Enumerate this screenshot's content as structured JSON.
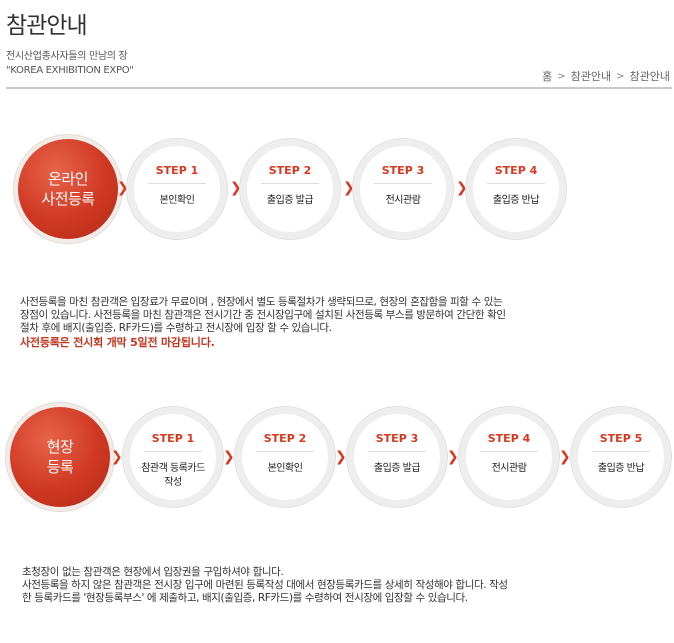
{
  "header": {
    "title": "참관안내",
    "subtitle_line1": "전시산업종사자들의 만남의 장",
    "subtitle_line2": "\"KOREA EXHIBITION EXPO\""
  },
  "breadcrumb": [
    "홈",
    "참관안내",
    "참관안내"
  ],
  "online": {
    "title_line1": "온라인",
    "title_line2": "사전등록",
    "steps": [
      {
        "num": "STEP 1",
        "label": "본인확인"
      },
      {
        "num": "STEP 2",
        "label": "출입증 발급"
      },
      {
        "num": "STEP 3",
        "label": "전시관람"
      },
      {
        "num": "STEP 4",
        "label": "출입증 반납"
      }
    ],
    "desc_lines": [
      "사전등록을 마친 참관객은 입장료가 무료이며 , 현장에서 별도 등록절차가 생략되므로, 현장의 혼잡함을 피할 수 있는",
      "장점이 있습니다. 사전등록을 마친 참관객은 전시기간 중 전시장입구에 설치된 사전등록 부스를 방문하여 간단한 확인",
      "절차 후에 배지(출입증, RF카드)를 수령하고 전시장에 입장 할 수 있습니다."
    ],
    "notice": "사전등록은 전시회 개막 5일전 마감됩니다."
  },
  "onsite": {
    "title_line1": "현장",
    "title_line2": "등록",
    "steps": [
      {
        "num": "STEP 1",
        "label_line1": "참관객 등록카드",
        "label_line2": "작성"
      },
      {
        "num": "STEP 2",
        "label_line1": "본인확인",
        "label_line2": ""
      },
      {
        "num": "STEP 3",
        "label_line1": "출입증 발급",
        "label_line2": ""
      },
      {
        "num": "STEP 4",
        "label_line1": "전시관람",
        "label_line2": ""
      },
      {
        "num": "STEP 5",
        "label_line1": "출입증 반납",
        "label_line2": ""
      }
    ],
    "desc_lines": [
      "초청장이 없는 참관객은 현장에서 입장권을 구입하셔야 합니다.",
      "사전등록을 하지 않은 참관객은 전시장 입구에 마련된 등록작성 대에서 현장등록카드를 상세히 작성해야 합니다. 작성",
      "한 등록카드를 '현장등록부스' 에 제출하고, 배지(출입증, RF카드)를 수령하여 전시장에 입장할 수 있습니다."
    ]
  },
  "colors": {
    "accent": "#d8381f",
    "circle_red": "#cf3823"
  },
  "icons": {
    "arrow": "chevron-right-icon",
    "breadcrumb_sep": "chevron-right-icon"
  }
}
